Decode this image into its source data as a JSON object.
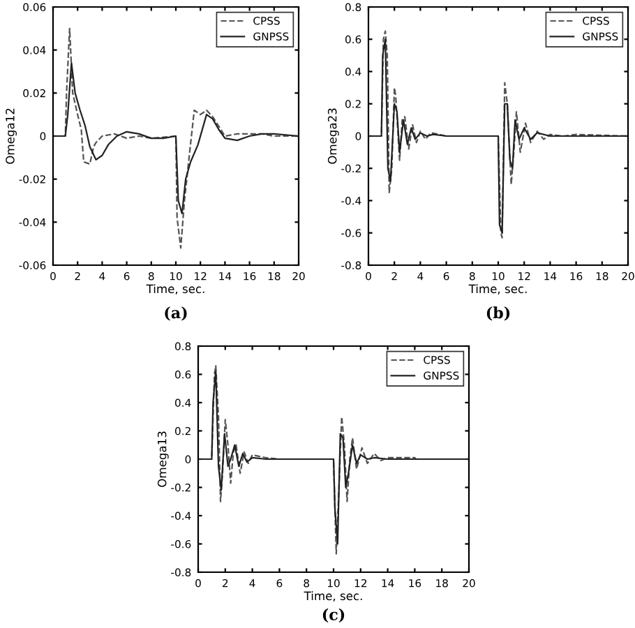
{
  "chart_data": [
    {
      "type": "line",
      "xlabel": "Time, sec.",
      "ylabel": "Omega12",
      "annotations": [
        "(a)"
      ],
      "legend": "top right",
      "xlim": [
        0,
        20
      ],
      "ylim": [
        -0.06,
        0.06
      ],
      "xticks": [
        0,
        2,
        4,
        6,
        8,
        10,
        12,
        14,
        16,
        18,
        20
      ],
      "yticks": [
        -0.06,
        -0.04,
        -0.02,
        0,
        0.02,
        0.04,
        0.06
      ],
      "series": [
        {
          "name": "CPSS",
          "color": "#555555",
          "line_style": "dashed",
          "x": [
            0,
            1,
            1.1,
            1.35,
            1.6,
            2.0,
            2.3,
            2.5,
            3.0,
            3.3,
            3.5,
            4.0,
            5,
            6,
            7,
            8,
            10,
            10.1,
            10.4,
            10.7,
            11,
            11.5,
            12,
            12.5,
            13,
            14,
            15,
            16,
            17,
            18,
            20
          ],
          "values": [
            0,
            0,
            0.02,
            0.05,
            0.02,
            0.01,
            0.003,
            -0.012,
            -0.013,
            -0.005,
            -0.003,
            0,
            0.001,
            -0.001,
            0,
            -0.001,
            0,
            -0.038,
            -0.052,
            -0.03,
            -0.014,
            0.012,
            0.01,
            0.012,
            0.009,
            0,
            0.001,
            0.001,
            0.001,
            0,
            0
          ]
        },
        {
          "name": "GNPSS",
          "color": "#222222",
          "line_style": "solid",
          "x": [
            0,
            1,
            1.2,
            1.5,
            1.8,
            2.2,
            2.6,
            3.0,
            3.5,
            4.0,
            4.5,
            5.2,
            6,
            7,
            8,
            9,
            10,
            10.2,
            10.5,
            10.8,
            11.2,
            11.8,
            12.5,
            13,
            13.5,
            14,
            15,
            16,
            17,
            18,
            20
          ],
          "values": [
            0,
            0,
            0.01,
            0.034,
            0.02,
            0.012,
            0.005,
            -0.005,
            -0.011,
            -0.009,
            -0.004,
            0,
            0.002,
            0.001,
            -0.001,
            -0.001,
            0,
            -0.03,
            -0.036,
            -0.02,
            -0.012,
            -0.004,
            0.01,
            0.008,
            0.003,
            -0.001,
            -0.002,
            0,
            0.001,
            0.001,
            0
          ]
        }
      ]
    },
    {
      "type": "line",
      "xlabel": "Time, sec.",
      "ylabel": "Omega23",
      "annotations": [
        "(b)"
      ],
      "legend": "top right",
      "xlim": [
        0,
        20
      ],
      "ylim": [
        -0.8,
        0.8
      ],
      "xticks": [
        0,
        2,
        4,
        6,
        8,
        10,
        12,
        14,
        16,
        18,
        20
      ],
      "yticks": [
        -0.8,
        -0.6,
        -0.4,
        -0.2,
        0,
        0.2,
        0.4,
        0.6,
        0.8
      ],
      "series": [
        {
          "name": "CPSS",
          "color": "#555555",
          "line_style": "dashed",
          "x": [
            0,
            1.0,
            1.15,
            1.3,
            1.45,
            1.6,
            1.8,
            2.0,
            2.1,
            2.4,
            2.6,
            2.8,
            3.1,
            3.4,
            3.7,
            4.0,
            4.4,
            4.8,
            5.5,
            6,
            10.0,
            10.2,
            10.3,
            10.5,
            10.7,
            11.0,
            11.2,
            11.4,
            11.7,
            12.1,
            12.5,
            13,
            13.5,
            14,
            15,
            16,
            20
          ],
          "values": [
            0,
            0,
            0.6,
            0.65,
            0.5,
            -0.35,
            -0.2,
            0.3,
            0.25,
            -0.15,
            0.1,
            0.12,
            -0.08,
            0.07,
            -0.04,
            0.03,
            -0.02,
            0.02,
            0.01,
            0,
            0,
            -0.6,
            -0.63,
            0.33,
            0.2,
            -0.3,
            -0.1,
            0.15,
            -0.1,
            0.08,
            -0.04,
            0.03,
            -0.02,
            0.01,
            0,
            0.01,
            0
          ]
        },
        {
          "name": "GNPSS",
          "color": "#222222",
          "line_style": "solid",
          "x": [
            0,
            1.0,
            1.1,
            1.3,
            1.5,
            1.7,
            2.0,
            2.2,
            2.4,
            2.7,
            3.0,
            3.3,
            3.6,
            4.0,
            4.5,
            5,
            6,
            10.0,
            10.1,
            10.3,
            10.5,
            10.7,
            10.9,
            11.1,
            11.3,
            11.6,
            12.0,
            12.5,
            13,
            14,
            20
          ],
          "values": [
            0,
            0,
            0.5,
            0.6,
            -0.2,
            -0.28,
            0.2,
            0.15,
            -0.1,
            0.1,
            -0.05,
            0.05,
            -0.02,
            0.02,
            0,
            0.01,
            0,
            0,
            -0.55,
            -0.6,
            0.2,
            0.2,
            -0.15,
            -0.2,
            0.1,
            -0.02,
            0.05,
            -0.02,
            0.02,
            0,
            0
          ]
        }
      ]
    },
    {
      "type": "line",
      "xlabel": "Time, sec.",
      "ylabel": "Omega13",
      "annotations": [
        "(c)"
      ],
      "legend": "top right",
      "xlim": [
        0,
        20
      ],
      "ylim": [
        -0.8,
        0.8
      ],
      "xticks": [
        0,
        2,
        4,
        6,
        8,
        10,
        12,
        14,
        16,
        18,
        20
      ],
      "yticks": [
        -0.8,
        -0.6,
        -0.4,
        -0.2,
        0,
        0.2,
        0.4,
        0.6,
        0.8
      ],
      "series": [
        {
          "name": "CPSS",
          "color": "#555555",
          "line_style": "dashed",
          "x": [
            0,
            1.0,
            1.2,
            1.3,
            1.5,
            1.65,
            1.8,
            2.0,
            2.2,
            2.4,
            2.6,
            2.8,
            3.1,
            3.4,
            3.7,
            4,
            5,
            6,
            10,
            10.2,
            10.4,
            10.6,
            10.8,
            11.0,
            11.2,
            11.4,
            11.7,
            12.1,
            12.5,
            13,
            13.5,
            14,
            16,
            16.1,
            20
          ],
          "values": [
            0,
            0,
            0.6,
            0.66,
            0.3,
            -0.3,
            -0.1,
            0.28,
            0.1,
            -0.17,
            0.05,
            0.1,
            -0.1,
            0.05,
            -0.03,
            0.03,
            0.01,
            0,
            0,
            -0.67,
            -0.2,
            0.3,
            0.1,
            -0.3,
            0,
            0.15,
            -0.07,
            0.08,
            -0.03,
            0.04,
            -0.01,
            0.01,
            0.01,
            0,
            0
          ]
        },
        {
          "name": "GNPSS",
          "color": "#222222",
          "line_style": "solid",
          "x": [
            0,
            1.0,
            1.1,
            1.3,
            1.5,
            1.7,
            1.95,
            2.2,
            2.4,
            2.7,
            3.0,
            3.3,
            3.6,
            4,
            5,
            10.0,
            10.1,
            10.3,
            10.5,
            10.7,
            10.9,
            11.1,
            11.4,
            11.7,
            12,
            12.5,
            13,
            14,
            20
          ],
          "values": [
            0,
            0,
            0.4,
            0.62,
            -0.05,
            -0.22,
            0.18,
            -0.05,
            0,
            0.1,
            -0.05,
            0.04,
            -0.02,
            0.01,
            0,
            0,
            -0.35,
            -0.6,
            0.18,
            0.15,
            -0.2,
            -0.1,
            0.1,
            -0.03,
            0.03,
            0,
            0.01,
            0,
            0
          ]
        }
      ]
    }
  ]
}
